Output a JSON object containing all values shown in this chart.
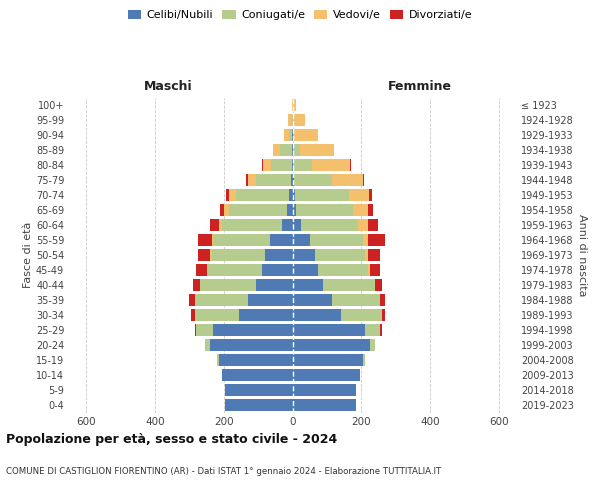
{
  "age_groups": [
    "0-4",
    "5-9",
    "10-14",
    "15-19",
    "20-24",
    "25-29",
    "30-34",
    "35-39",
    "40-44",
    "45-49",
    "50-54",
    "55-59",
    "60-64",
    "65-69",
    "70-74",
    "75-79",
    "80-84",
    "85-89",
    "90-94",
    "95-99",
    "100+"
  ],
  "birth_years": [
    "2019-2023",
    "2014-2018",
    "2009-2013",
    "2004-2008",
    "1999-2003",
    "1994-1998",
    "1989-1993",
    "1984-1988",
    "1979-1983",
    "1974-1978",
    "1969-1973",
    "1964-1968",
    "1959-1963",
    "1954-1958",
    "1949-1953",
    "1944-1948",
    "1939-1943",
    "1934-1938",
    "1929-1933",
    "1924-1928",
    "≤ 1923"
  ],
  "colors": {
    "celibi": "#4f7ab3",
    "coniugati": "#b5cc8e",
    "vedovi": "#f5c06e",
    "divorziati": "#cc2222"
  },
  "maschi": {
    "celibi": [
      195,
      195,
      205,
      215,
      240,
      230,
      155,
      130,
      105,
      90,
      80,
      65,
      30,
      15,
      10,
      5,
      2,
      2,
      1,
      0,
      0
    ],
    "coniugati": [
      0,
      0,
      0,
      5,
      15,
      50,
      130,
      155,
      165,
      160,
      155,
      165,
      175,
      170,
      155,
      100,
      60,
      35,
      10,
      5,
      0
    ],
    "vedovi": [
      0,
      0,
      0,
      0,
      0,
      0,
      0,
      0,
      0,
      0,
      5,
      5,
      10,
      15,
      20,
      25,
      25,
      20,
      15,
      8,
      2
    ],
    "divorziati": [
      0,
      0,
      0,
      0,
      0,
      5,
      10,
      15,
      20,
      30,
      35,
      40,
      25,
      10,
      8,
      5,
      2,
      1,
      0,
      0,
      0
    ]
  },
  "femmine": {
    "celibi": [
      185,
      185,
      195,
      205,
      225,
      210,
      140,
      115,
      90,
      75,
      65,
      50,
      25,
      10,
      8,
      4,
      2,
      1,
      0,
      0,
      0
    ],
    "coniugati": [
      0,
      0,
      0,
      5,
      15,
      45,
      120,
      140,
      150,
      145,
      145,
      155,
      165,
      165,
      155,
      110,
      55,
      20,
      5,
      2,
      0
    ],
    "vedovi": [
      0,
      0,
      0,
      0,
      0,
      0,
      0,
      0,
      0,
      5,
      10,
      15,
      30,
      45,
      60,
      90,
      110,
      100,
      70,
      35,
      10
    ],
    "divorziati": [
      0,
      0,
      0,
      0,
      0,
      5,
      10,
      15,
      20,
      30,
      35,
      50,
      30,
      15,
      8,
      5,
      2,
      1,
      0,
      0,
      0
    ]
  },
  "title": "Popolazione per età, sesso e stato civile - 2024",
  "subtitle": "COMUNE DI CASTIGLION FIORENTINO (AR) - Dati ISTAT 1° gennaio 2024 - Elaborazione TUTTITALIA.IT",
  "xlabel_left": "Maschi",
  "xlabel_right": "Femmine",
  "ylabel_left": "Fasce di età",
  "ylabel_right": "Anni di nascita",
  "xlim": 650,
  "bg_color": "#ffffff",
  "grid_color": "#c8c8c8"
}
